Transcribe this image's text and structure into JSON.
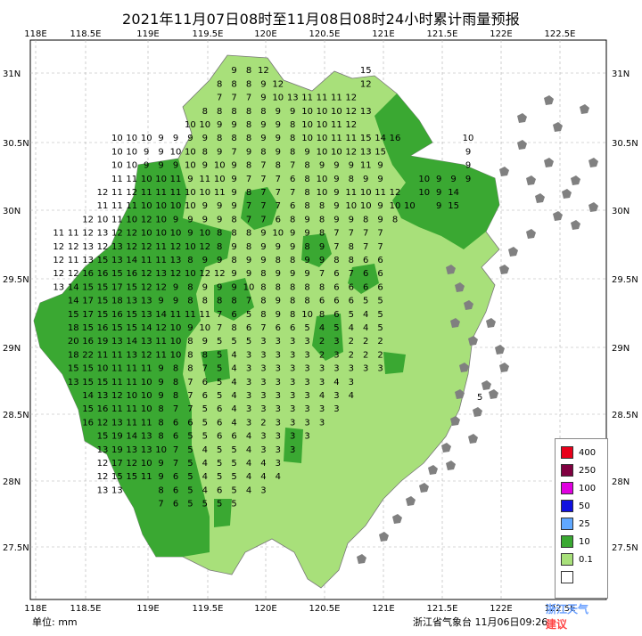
{
  "title": "2021年11月07日08时至11月08日08时24小时累计雨量预报",
  "unit_label": "单位:  mm",
  "source": "浙江省气象台 11月06日09:26",
  "watermark": {
    "line1": "浙江天气",
    "line2": "建议"
  },
  "lon_labels": [
    "118E",
    "118.5E",
    "119E",
    "119.5E",
    "120E",
    "120.5E",
    "121E",
    "121.5E",
    "122E",
    "122.5E"
  ],
  "lat_labels": [
    "31N",
    "30.5N",
    "30N",
    "29.5N",
    "29N",
    "28.5N",
    "28N",
    "27.5N"
  ],
  "legend": [
    {
      "label": "400",
      "color": "#e8001a"
    },
    {
      "label": "250",
      "color": "#800040"
    },
    {
      "label": "100",
      "color": "#e000e0"
    },
    {
      "label": "50",
      "color": "#1010e0"
    },
    {
      "label": "25",
      "color": "#60a8ff"
    },
    {
      "label": "10",
      "color": "#3aa832"
    },
    {
      "label": "0.1",
      "color": "#a8e07a"
    },
    {
      "label": "",
      "color": "#ffffff"
    }
  ],
  "colors": {
    "land_light": "#a8e07a",
    "land_dark": "#3aa832",
    "islands": "#808080"
  },
  "grid_values": [
    [
      null,
      null,
      null,
      null,
      null,
      null,
      null,
      null,
      null,
      null,
      null,
      null,
      null,
      null,
      null,
      null,
      null,
      null,
      null,
      null,
      null,
      null,
      null,
      null,
      null,
      null,
      null,
      null,
      null,
      null,
      null,
      null,
      null,
      null,
      null,
      null
    ],
    [
      null,
      null,
      null,
      null,
      null,
      null,
      null,
      null,
      null,
      null,
      null,
      null,
      null,
      null,
      "9",
      "8",
      "12",
      null,
      null,
      null,
      null,
      null,
      null,
      "15",
      null,
      null,
      null,
      null,
      null,
      null,
      null,
      null,
      null,
      null,
      null,
      null
    ],
    [
      null,
      null,
      null,
      null,
      null,
      null,
      null,
      null,
      null,
      null,
      null,
      null,
      null,
      "8",
      "8",
      "8",
      "9",
      "12",
      null,
      null,
      null,
      null,
      null,
      "12",
      null,
      null,
      null,
      null,
      null,
      null,
      null,
      null,
      null,
      null,
      null,
      null
    ],
    [
      null,
      null,
      null,
      null,
      null,
      null,
      null,
      null,
      null,
      null,
      null,
      null,
      null,
      "7",
      "7",
      "7",
      "9",
      "10",
      "13",
      "11",
      "11",
      "11",
      "12",
      null,
      null,
      null,
      null,
      null,
      null,
      null,
      null,
      null,
      null,
      null,
      null,
      null
    ],
    [
      null,
      null,
      null,
      null,
      null,
      null,
      null,
      null,
      null,
      null,
      null,
      null,
      "8",
      "8",
      "8",
      "8",
      "8",
      "9",
      "9",
      "10",
      "10",
      "10",
      "12",
      "13",
      null,
      null,
      null,
      null,
      null,
      null,
      null,
      null,
      null,
      null,
      null,
      null
    ],
    [
      null,
      null,
      null,
      null,
      null,
      null,
      null,
      null,
      null,
      null,
      null,
      "10",
      "10",
      "9",
      "9",
      "8",
      "9",
      "9",
      "8",
      "10",
      "10",
      "11",
      "12",
      null,
      null,
      null,
      null,
      null,
      null,
      null,
      null,
      null,
      null,
      null,
      null,
      null
    ],
    [
      null,
      null,
      null,
      null,
      null,
      null,
      "10",
      "10",
      "10",
      "9",
      "9",
      "9",
      "9",
      "8",
      "8",
      "8",
      "9",
      "9",
      "8",
      "10",
      "10",
      "11",
      "11",
      "15",
      "14",
      "16",
      null,
      null,
      null,
      null,
      "10",
      null,
      null,
      null,
      null,
      null
    ],
    [
      null,
      null,
      null,
      null,
      null,
      null,
      "10",
      "10",
      "9",
      "9",
      "10",
      "10",
      "8",
      "9",
      "7",
      "9",
      "8",
      "9",
      "8",
      "9",
      "10",
      "10",
      "12",
      "13",
      "15",
      null,
      null,
      null,
      null,
      null,
      "9",
      null,
      null,
      null,
      null,
      null
    ],
    [
      null,
      null,
      null,
      null,
      null,
      null,
      "10",
      "10",
      "9",
      "9",
      "9",
      "10",
      "9",
      "10",
      "9",
      "8",
      "7",
      "8",
      "7",
      "8",
      "9",
      "9",
      "9",
      "11",
      "9",
      null,
      null,
      null,
      null,
      null,
      "9",
      null,
      null,
      null,
      null,
      null
    ],
    [
      null,
      null,
      null,
      null,
      null,
      null,
      "11",
      "11",
      "10",
      "10",
      "11",
      "9",
      "11",
      "10",
      "9",
      "7",
      "7",
      "7",
      "6",
      "8",
      "10",
      "9",
      "8",
      "9",
      "9",
      null,
      null,
      "10",
      "9",
      "9",
      "9",
      null,
      null,
      null,
      null,
      null
    ],
    [
      null,
      null,
      null,
      null,
      null,
      "12",
      "11",
      "12",
      "11",
      "11",
      "11",
      "10",
      "10",
      "11",
      "9",
      "8",
      "7",
      "7",
      "7",
      "8",
      "10",
      "9",
      "11",
      "10",
      "11",
      "12",
      null,
      "10",
      "9",
      "14",
      null,
      null,
      null,
      null,
      null,
      null
    ],
    [
      null,
      null,
      null,
      null,
      null,
      "11",
      "11",
      "11",
      "10",
      "10",
      "10",
      "10",
      "9",
      "9",
      "9",
      "7",
      "7",
      "7",
      "6",
      "8",
      "8",
      "9",
      "10",
      "10",
      "9",
      "10",
      "10",
      null,
      "9",
      "15",
      null,
      null,
      null,
      null,
      null,
      null
    ],
    [
      null,
      null,
      null,
      null,
      "12",
      "10",
      "11",
      "10",
      "12",
      "10",
      "9",
      "9",
      "9",
      "9",
      "8",
      "7",
      "7",
      "6",
      "8",
      "9",
      "8",
      "9",
      "9",
      "8",
      "9",
      "8",
      null,
      null,
      null,
      null,
      null,
      null,
      null,
      null,
      null,
      null
    ],
    [
      null,
      null,
      "11",
      "11",
      "12",
      "13",
      "12",
      "12",
      "10",
      "10",
      "10",
      "9",
      "10",
      "8",
      "8",
      "8",
      "9",
      "10",
      "9",
      "9",
      "8",
      "7",
      "7",
      "7",
      "7",
      null,
      null,
      null,
      null,
      null,
      null,
      null,
      null,
      null,
      null,
      null
    ],
    [
      null,
      null,
      "12",
      "12",
      "13",
      "12",
      "13",
      "12",
      "12",
      "11",
      "12",
      "10",
      "12",
      "8",
      "9",
      "8",
      "9",
      "9",
      "9",
      "8",
      "9",
      "7",
      "8",
      "7",
      "7",
      null,
      null,
      null,
      null,
      null,
      null,
      null,
      null,
      null,
      null,
      null
    ],
    [
      null,
      null,
      "12",
      "11",
      "13",
      "15",
      "13",
      "14",
      "11",
      "11",
      "13",
      "8",
      "9",
      "9",
      "8",
      "9",
      "9",
      "8",
      "8",
      "9",
      "9",
      "8",
      "8",
      "6",
      "6",
      null,
      null,
      null,
      null,
      null,
      null,
      null,
      null,
      null,
      null,
      null
    ],
    [
      null,
      null,
      "12",
      "12",
      "16",
      "16",
      "15",
      "16",
      "12",
      "13",
      "12",
      "10",
      "12",
      "12",
      "9",
      "9",
      "8",
      "9",
      "9",
      "9",
      "7",
      "6",
      "7",
      "6",
      "6",
      null,
      null,
      null,
      null,
      null,
      null,
      null,
      null,
      null,
      null,
      null
    ],
    [
      null,
      null,
      "13",
      "14",
      "15",
      "15",
      "17",
      "15",
      "12",
      "12",
      "9",
      "8",
      "9",
      "9",
      "9",
      "10",
      "8",
      "8",
      "8",
      "8",
      "8",
      "6",
      "6",
      "6",
      "6",
      null,
      null,
      null,
      null,
      null,
      null,
      null,
      null,
      null,
      null,
      null
    ],
    [
      null,
      null,
      null,
      "14",
      "17",
      "15",
      "18",
      "13",
      "13",
      "9",
      "9",
      "8",
      "8",
      "8",
      "8",
      "7",
      "8",
      "9",
      "8",
      "8",
      "6",
      "6",
      "6",
      "5",
      "5",
      null,
      null,
      null,
      null,
      null,
      null,
      null,
      null,
      null,
      null,
      null
    ],
    [
      null,
      null,
      null,
      "15",
      "17",
      "15",
      "16",
      "15",
      "13",
      "14",
      "11",
      "11",
      "11",
      "7",
      "6",
      "5",
      "8",
      "9",
      "8",
      "10",
      "8",
      "6",
      "5",
      "4",
      "5",
      null,
      null,
      null,
      null,
      null,
      null,
      null,
      null,
      null,
      null,
      null
    ],
    [
      null,
      null,
      null,
      "18",
      "15",
      "16",
      "15",
      "15",
      "14",
      "12",
      "10",
      "9",
      "10",
      "7",
      "8",
      "6",
      "7",
      "6",
      "6",
      "5",
      "4",
      "5",
      "4",
      "4",
      "5",
      null,
      null,
      null,
      null,
      null,
      null,
      null,
      null,
      null,
      null,
      null
    ],
    [
      null,
      null,
      null,
      "20",
      "16",
      "19",
      "13",
      "14",
      "13",
      "11",
      "10",
      "8",
      "9",
      "5",
      "5",
      "5",
      "3",
      "3",
      "3",
      "3",
      "2",
      "3",
      "2",
      "2",
      "2",
      null,
      null,
      null,
      null,
      null,
      null,
      null,
      null,
      null,
      null,
      null
    ],
    [
      null,
      null,
      null,
      "18",
      "22",
      "11",
      "11",
      "13",
      "12",
      "11",
      "10",
      "8",
      "8",
      "5",
      "4",
      "3",
      "3",
      "3",
      "3",
      "3",
      "2",
      "3",
      "2",
      "2",
      "2",
      null,
      null,
      null,
      null,
      null,
      null,
      null,
      null,
      null,
      null,
      null
    ],
    [
      null,
      null,
      null,
      "15",
      "15",
      "10",
      "11",
      "11",
      "11",
      "9",
      "8",
      "8",
      "7",
      "5",
      "4",
      "3",
      "3",
      "3",
      "3",
      "3",
      "3",
      "3",
      "3",
      "3",
      "3",
      null,
      null,
      null,
      null,
      null,
      null,
      null,
      null,
      null,
      null,
      null
    ],
    [
      null,
      null,
      null,
      "13",
      "15",
      "15",
      "11",
      "11",
      "10",
      "9",
      "8",
      "7",
      "6",
      "5",
      "4",
      "3",
      "3",
      "3",
      "3",
      "3",
      "3",
      "4",
      "3",
      null,
      null,
      null,
      null,
      null,
      null,
      null,
      null,
      null,
      null,
      null,
      null,
      null
    ],
    [
      null,
      null,
      null,
      null,
      "14",
      "13",
      "12",
      "10",
      "10",
      "9",
      "8",
      "7",
      "6",
      "5",
      "4",
      "3",
      "3",
      "3",
      "3",
      "3",
      "4",
      "3",
      "4",
      null,
      null,
      null,
      null,
      null,
      null,
      null,
      null,
      null,
      null,
      null,
      null,
      null
    ],
    [
      null,
      null,
      null,
      null,
      "15",
      "16",
      "11",
      "11",
      "10",
      "8",
      "7",
      "7",
      "5",
      "6",
      "4",
      "3",
      "3",
      "3",
      "3",
      "3",
      "3",
      "3",
      null,
      null,
      null,
      null,
      null,
      null,
      null,
      null,
      null,
      null,
      null,
      null,
      null,
      null
    ],
    [
      null,
      null,
      null,
      null,
      "16",
      "12",
      "13",
      "11",
      "11",
      "8",
      "6",
      "6",
      "5",
      "6",
      "4",
      "3",
      "2",
      "3",
      "3",
      "3",
      "3",
      null,
      null,
      null,
      null,
      null,
      null,
      null,
      null,
      null,
      null,
      null,
      null,
      null,
      null,
      null
    ],
    [
      null,
      null,
      null,
      null,
      null,
      "15",
      "19",
      "14",
      "13",
      "8",
      "6",
      "5",
      "5",
      "6",
      "6",
      "4",
      "3",
      "3",
      "3",
      "3",
      null,
      null,
      null,
      null,
      null,
      null,
      null,
      null,
      null,
      null,
      null,
      null,
      null,
      null,
      null,
      null
    ],
    [
      null,
      null,
      null,
      null,
      null,
      "13",
      "19",
      "13",
      "13",
      "10",
      "7",
      "5",
      "4",
      "5",
      "5",
      "4",
      "3",
      "3",
      "3",
      null,
      null,
      null,
      null,
      null,
      null,
      null,
      null,
      null,
      null,
      null,
      null,
      null,
      null,
      null,
      null,
      null
    ],
    [
      null,
      null,
      null,
      null,
      null,
      "12",
      "17",
      "12",
      "10",
      "9",
      "7",
      "5",
      "4",
      "5",
      "5",
      "4",
      "4",
      "3",
      null,
      null,
      null,
      null,
      null,
      null,
      null,
      null,
      null,
      null,
      null,
      null,
      null,
      null,
      null,
      null,
      null,
      null
    ],
    [
      null,
      null,
      null,
      null,
      null,
      "12",
      "15",
      "15",
      "11",
      "9",
      "6",
      "5",
      "4",
      "5",
      "5",
      "4",
      "4",
      "4",
      null,
      null,
      null,
      null,
      null,
      null,
      null,
      null,
      null,
      null,
      null,
      null,
      null,
      null,
      null,
      null,
      null,
      null
    ],
    [
      null,
      null,
      null,
      null,
      null,
      "13",
      "13",
      null,
      null,
      "8",
      "6",
      "5",
      "4",
      "6",
      "5",
      "4",
      "3",
      null,
      null,
      null,
      null,
      null,
      null,
      null,
      null,
      null,
      null,
      null,
      null,
      null,
      null,
      null,
      null,
      null,
      null,
      null
    ],
    [
      null,
      null,
      null,
      null,
      null,
      null,
      null,
      null,
      null,
      "7",
      "6",
      "5",
      "5",
      "5",
      "5",
      null,
      null,
      null,
      null,
      null,
      null,
      null,
      null,
      null,
      null,
      null,
      null,
      null,
      null,
      null,
      null,
      null,
      null,
      null,
      null,
      null
    ],
    [
      null,
      null,
      null,
      null,
      null,
      null,
      null,
      null,
      null,
      null,
      null,
      null,
      null,
      null,
      null,
      null,
      null,
      null,
      null,
      null,
      null,
      null,
      null,
      null,
      null,
      null,
      null,
      null,
      null,
      null,
      null,
      null,
      null,
      null,
      null,
      null
    ]
  ]
}
